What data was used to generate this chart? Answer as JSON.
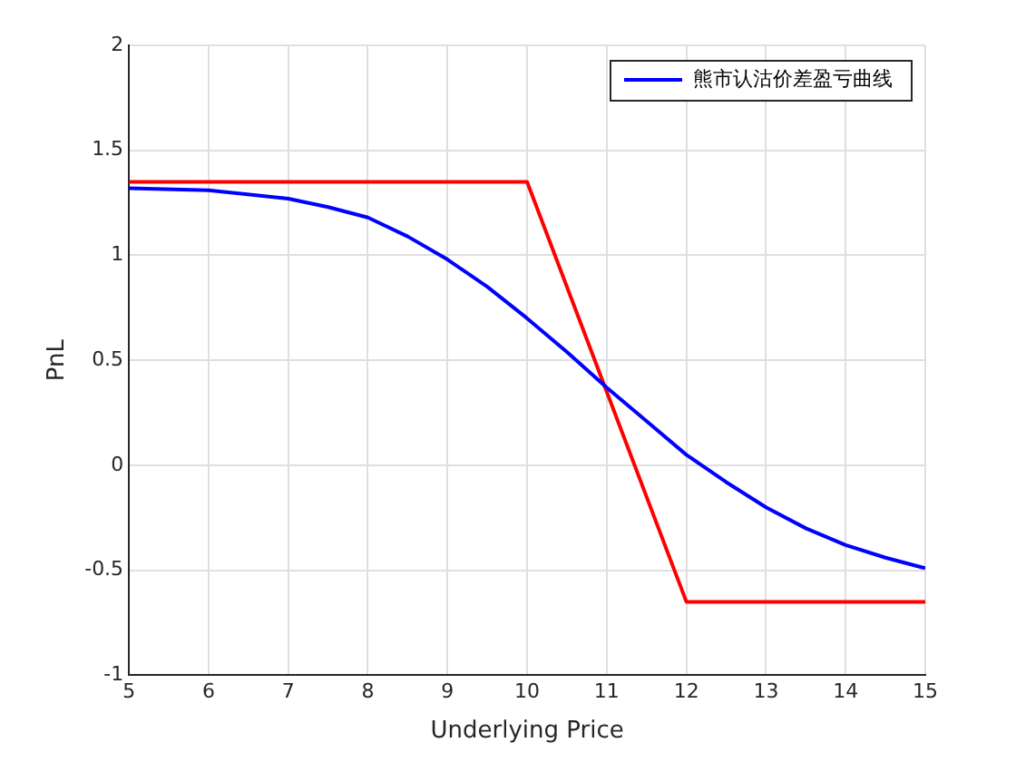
{
  "chart_data": {
    "type": "line",
    "xlabel": "Underlying Price",
    "ylabel": "PnL",
    "xlim": [
      5,
      15
    ],
    "xticks": [
      5,
      6,
      7,
      8,
      9,
      10,
      11,
      12,
      13,
      14,
      15
    ],
    "ylim": [
      -1,
      2
    ],
    "yticks": [
      -1,
      -0.5,
      0,
      0.5,
      1,
      1.5,
      2
    ],
    "grid": true,
    "legend": "top right",
    "marker": "none",
    "line_style": "solid",
    "series": [
      {
        "name": "熊市认沽价差盈亏曲线",
        "color": "#0000ff",
        "x": [
          5,
          6,
          7,
          7.5,
          8,
          8.5,
          9,
          9.5,
          10,
          10.5,
          11,
          11.5,
          12,
          12.5,
          13,
          13.5,
          14,
          14.5,
          15
        ],
        "values": [
          1.32,
          1.31,
          1.27,
          1.23,
          1.18,
          1.09,
          0.98,
          0.85,
          0.7,
          0.54,
          0.37,
          0.21,
          0.05,
          -0.08,
          -0.2,
          -0.3,
          -0.38,
          -0.44,
          -0.49
        ]
      },
      {
        "color": "#ff0000",
        "x": [
          5,
          10,
          12,
          15
        ],
        "values": [
          1.35,
          1.35,
          -0.65,
          -0.65
        ]
      }
    ]
  }
}
